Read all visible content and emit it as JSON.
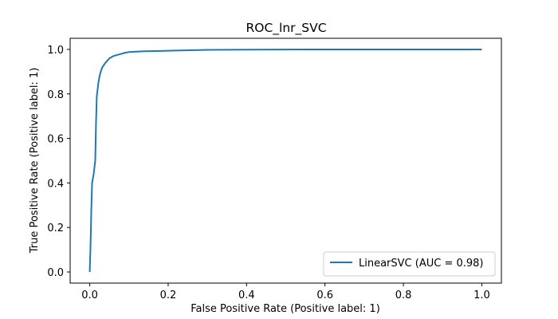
{
  "chart_data": {
    "type": "line",
    "title": "ROC_lnr_SVC",
    "xlabel": "False Positive Rate (Positive label: 1)",
    "ylabel": "True Positive Rate (Positive label: 1)",
    "xlim": [
      -0.05,
      1.05
    ],
    "ylim": [
      -0.05,
      1.05
    ],
    "xticks": [
      0.0,
      0.2,
      0.4,
      0.6,
      0.8,
      1.0
    ],
    "yticks": [
      0.0,
      0.2,
      0.4,
      0.6,
      0.8,
      1.0
    ],
    "xtick_labels": [
      "0.0",
      "0.2",
      "0.4",
      "0.6",
      "0.8",
      "1.0"
    ],
    "ytick_labels": [
      "0.0",
      "0.2",
      "0.4",
      "0.6",
      "0.8",
      "1.0"
    ],
    "grid": false,
    "legend_placement": "lower-right",
    "series": [
      {
        "name": "LinearSVC (AUC = 0.98)",
        "color": "#1f77b4",
        "x": [
          0.0,
          0.002,
          0.004,
          0.006,
          0.008,
          0.01,
          0.012,
          0.014,
          0.016,
          0.018,
          0.02,
          0.022,
          0.025,
          0.028,
          0.032,
          0.036,
          0.04,
          0.045,
          0.05,
          0.055,
          0.06,
          0.07,
          0.08,
          0.09,
          0.1,
          0.12,
          0.14,
          0.18,
          0.22,
          0.3,
          0.4,
          0.6,
          0.8,
          1.0
        ],
        "y": [
          0.0,
          0.12,
          0.28,
          0.4,
          0.42,
          0.44,
          0.47,
          0.5,
          0.67,
          0.79,
          0.82,
          0.85,
          0.88,
          0.9,
          0.92,
          0.93,
          0.94,
          0.95,
          0.96,
          0.965,
          0.97,
          0.975,
          0.98,
          0.985,
          0.988,
          0.99,
          0.992,
          0.993,
          0.995,
          0.998,
          0.999,
          1.0,
          1.0,
          1.0
        ]
      }
    ]
  }
}
